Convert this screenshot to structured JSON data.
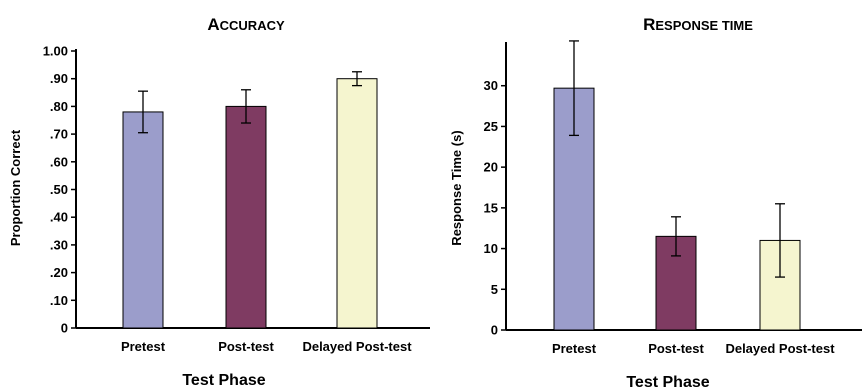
{
  "chart_data": [
    {
      "type": "bar",
      "title": "Accuracy",
      "xlabel": "Test Phase",
      "ylabel": "Proportion Correct",
      "categories": [
        "Pretest",
        "Post-test",
        "Delayed Post-test"
      ],
      "values": [
        0.78,
        0.8,
        0.9
      ],
      "errors": [
        0.075,
        0.06,
        0.025
      ],
      "ylim": [
        0,
        1.0
      ],
      "yticks": [
        0,
        0.1,
        0.2,
        0.3,
        0.4,
        0.5,
        0.6,
        0.7,
        0.8,
        0.9,
        1.0
      ],
      "ytick_labels": [
        "0",
        ".10",
        ".20",
        ".30",
        ".40",
        ".50",
        ".60",
        ".70",
        ".80",
        ".90",
        "1.00"
      ],
      "colors": [
        "#9b9dcb",
        "#7f3b62",
        "#f5f5cf"
      ],
      "grid": false
    },
    {
      "type": "bar",
      "title": "Response time",
      "xlabel": "Test Phase",
      "ylabel": "Response Time (s)",
      "categories": [
        "Pretest",
        "Post-test",
        "Delayed Post-test"
      ],
      "values": [
        29.7,
        11.5,
        11.0
      ],
      "errors": [
        5.8,
        2.4,
        4.5
      ],
      "ylim": [
        0,
        35
      ],
      "yticks": [
        0,
        5,
        10,
        15,
        20,
        25,
        30
      ],
      "ytick_labels": [
        "0",
        "5",
        "10",
        "15",
        "20",
        "25",
        "30"
      ],
      "colors": [
        "#9b9dcb",
        "#7f3b62",
        "#f5f5cf"
      ],
      "grid": false
    }
  ]
}
